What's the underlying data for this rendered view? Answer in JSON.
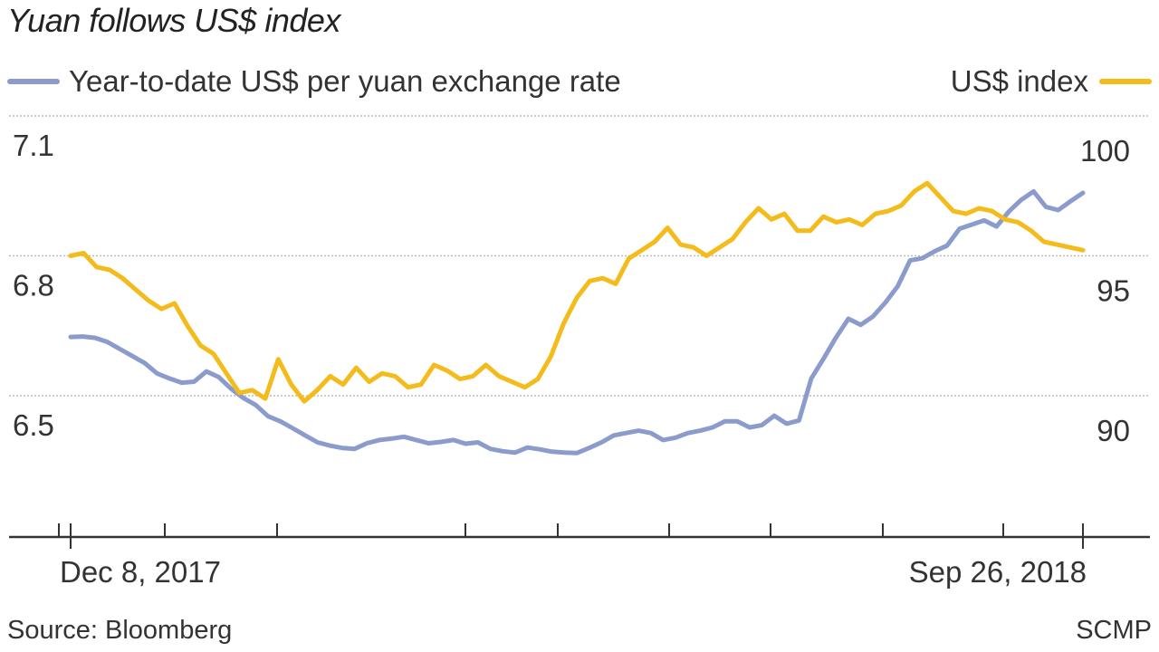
{
  "title": "Yuan follows US$ index",
  "source": "Source: Bloomberg",
  "credit": "SCMP",
  "colors": {
    "yuan": "#8b9ccc",
    "usd": "#f3bb1c",
    "axis": "#333333",
    "grid": "#bbbbbb"
  },
  "chart_data": {
    "type": "line",
    "title": "Yuan follows US$ index",
    "x_range": [
      "Dec 8, 2017",
      "Sep 26, 2018"
    ],
    "x_tick_labels": [
      "Dec 8, 2017",
      "Sep 26, 2018"
    ],
    "y_left": {
      "ticks": [
        7.1,
        6.8,
        6.5
      ],
      "tick_labels": [
        "7.1",
        "6.8",
        "6.5"
      ],
      "range": [
        6.35,
        7.1
      ]
    },
    "y_right": {
      "ticks": [
        100,
        95,
        90
      ],
      "tick_labels": [
        "100",
        "95",
        "90"
      ],
      "range": [
        87.5,
        100
      ]
    },
    "grid": true,
    "legend_placement": "top",
    "series": [
      {
        "name": "Year-to-date US$ per yuan exchange rate",
        "axis": "left",
        "values": [
          6.626,
          6.627,
          6.624,
          6.615,
          6.6,
          6.585,
          6.57,
          6.548,
          6.537,
          6.528,
          6.53,
          6.552,
          6.54,
          6.515,
          6.495,
          6.48,
          6.456,
          6.445,
          6.43,
          6.415,
          6.4,
          6.393,
          6.388,
          6.386,
          6.398,
          6.405,
          6.408,
          6.412,
          6.405,
          6.398,
          6.401,
          6.405,
          6.397,
          6.4,
          6.386,
          6.381,
          6.378,
          6.389,
          6.385,
          6.38,
          6.378,
          6.377,
          6.388,
          6.4,
          6.415,
          6.42,
          6.425,
          6.42,
          6.405,
          6.41,
          6.42,
          6.425,
          6.432,
          6.445,
          6.445,
          6.432,
          6.437,
          6.457,
          6.44,
          6.447,
          6.537,
          6.58,
          6.625,
          6.665,
          6.652,
          6.67,
          6.7,
          6.735,
          6.79,
          6.795,
          6.81,
          6.822,
          6.858,
          6.867,
          6.876,
          6.863,
          6.895,
          6.92,
          6.938,
          6.905,
          6.898,
          6.917,
          6.935
        ]
      },
      {
        "name": "US$ index",
        "axis": "right",
        "values": [
          95.0,
          95.1,
          94.6,
          94.5,
          94.2,
          93.8,
          93.4,
          93.1,
          93.3,
          92.5,
          91.8,
          91.5,
          90.8,
          90.1,
          90.2,
          89.9,
          91.3,
          90.4,
          89.8,
          90.2,
          90.7,
          90.4,
          91.0,
          90.5,
          90.8,
          90.7,
          90.3,
          90.4,
          91.1,
          90.9,
          90.6,
          90.7,
          91.1,
          90.7,
          90.5,
          90.3,
          90.6,
          91.4,
          92.6,
          93.5,
          94.1,
          94.2,
          94.0,
          94.9,
          95.2,
          95.5,
          96.0,
          95.4,
          95.3,
          95.0,
          95.3,
          95.6,
          96.2,
          96.7,
          96.3,
          96.5,
          95.9,
          95.9,
          96.4,
          96.2,
          96.3,
          96.1,
          96.5,
          96.6,
          96.8,
          97.3,
          97.6,
          97.1,
          96.6,
          96.5,
          96.7,
          96.6,
          96.3,
          96.2,
          95.9,
          95.5,
          95.4,
          95.3,
          95.2
        ]
      }
    ]
  }
}
